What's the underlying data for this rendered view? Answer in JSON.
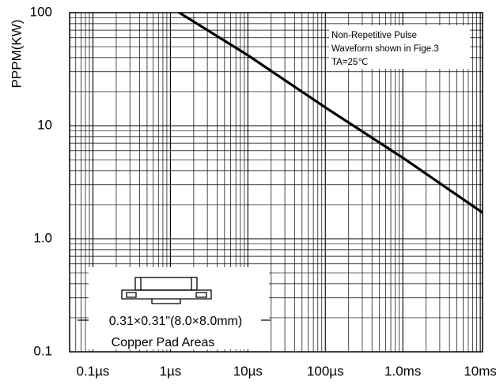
{
  "chart_data": {
    "type": "line",
    "title": "",
    "xlabel": "",
    "ylabel": "PPPM(KW)",
    "x_scale": "log",
    "y_scale": "log",
    "x_unit": "s",
    "xlim": [
      5e-08,
      0.0107
    ],
    "ylim": [
      0.1,
      100
    ],
    "x_ticks": [
      {
        "value": 1e-07,
        "label": "0.1µs"
      },
      {
        "value": 1e-06,
        "label": "1µs"
      },
      {
        "value": 1e-05,
        "label": "10µs"
      },
      {
        "value": 0.0001,
        "label": "100µs"
      },
      {
        "value": 0.001,
        "label": "1.0ms"
      },
      {
        "value": 0.01,
        "label": "10ms"
      }
    ],
    "y_ticks": [
      {
        "value": 0.1,
        "label": "0.1"
      },
      {
        "value": 1,
        "label": "1.0"
      },
      {
        "value": 10,
        "label": "10"
      },
      {
        "value": 100,
        "label": "100"
      }
    ],
    "grid": true,
    "series": [
      {
        "x": [
          1.3e-06,
          1e-06,
          1e-05,
          0.0001,
          0.001,
          0.0107
        ],
        "y": [
          100,
          118,
          42,
          14.5,
          5.2,
          1.7
        ]
      }
    ],
    "annotations": [
      "Non-Repetitive Pulse",
      "Waveform shown in Fige.3",
      "TA=25℃"
    ],
    "inset_labels": [
      "0.31×0.31\"(8.0×8.0mm)",
      "Copper Pad Areas"
    ]
  }
}
